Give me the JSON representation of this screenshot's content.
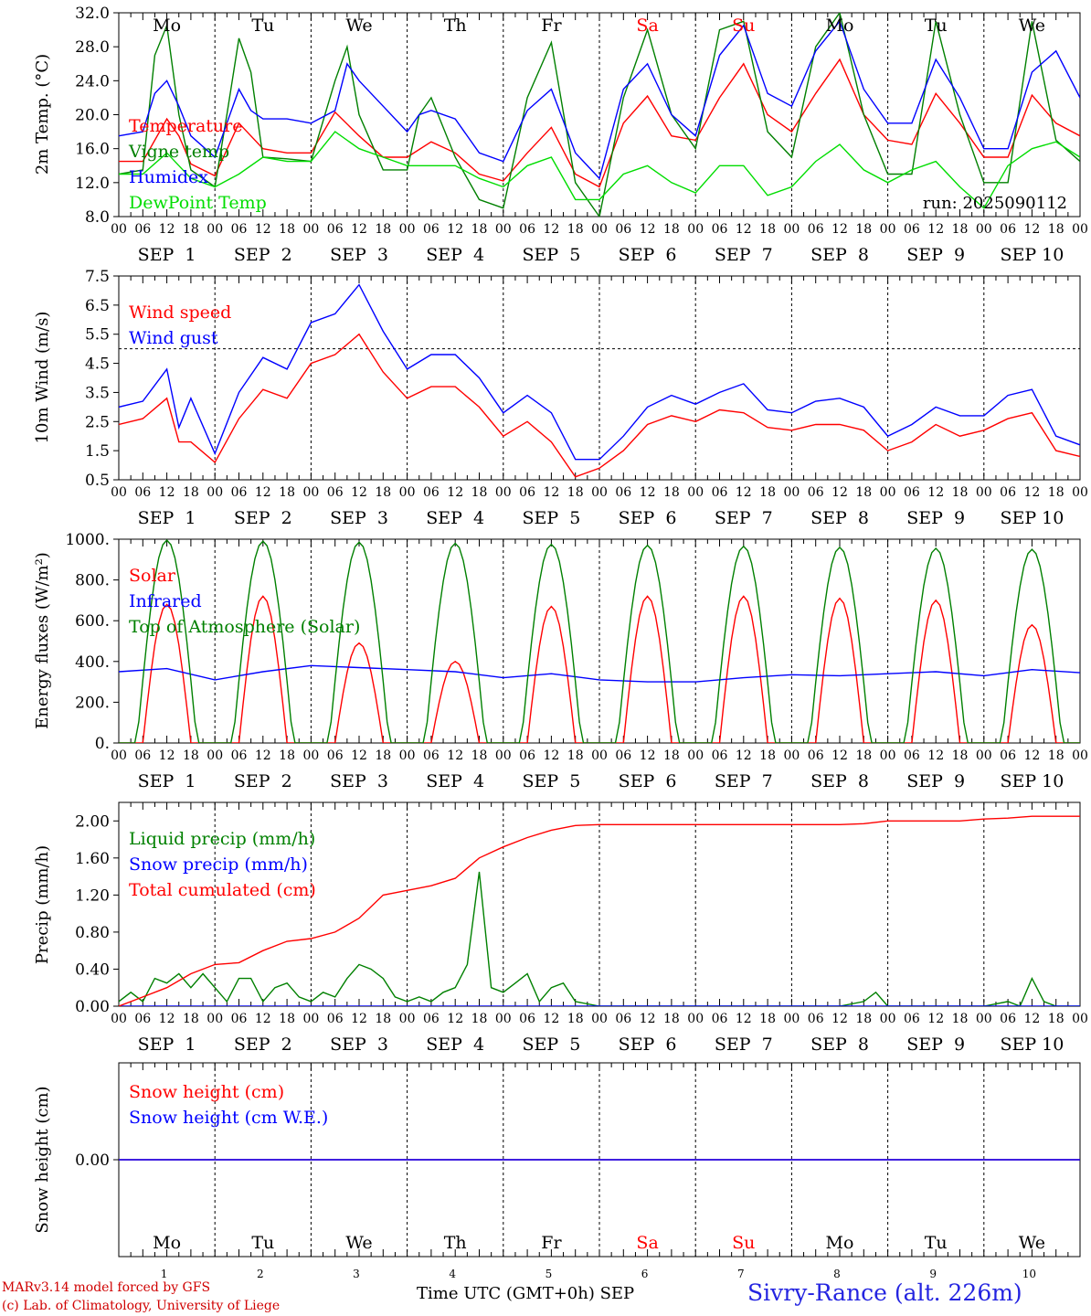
{
  "run_label": "run: 2025090112",
  "days": [
    "Mo",
    "Tu",
    "We",
    "Th",
    "Fr",
    "Sa",
    "Su",
    "Mo",
    "Tu",
    "We"
  ],
  "weekend_flags": [
    false,
    false,
    false,
    false,
    false,
    true,
    true,
    false,
    false,
    false
  ],
  "date_labels": [
    "SEP  1",
    "SEP  2",
    "SEP  3",
    "SEP  4",
    "SEP  5",
    "SEP  6",
    "SEP  7",
    "SEP  8",
    "SEP  9",
    "SEP 10"
  ],
  "day_numbers": [
    "1",
    "2",
    "3",
    "4",
    "5",
    "6",
    "7",
    "8",
    "9",
    "10"
  ],
  "hour_ticks": [
    "00",
    "06",
    "12",
    "18"
  ],
  "footer": {
    "model": "MARv3.14 model forced by GFS",
    "lab": "(c) Lab. of Climatology, University of Liege",
    "xaxis": "Time UTC (GMT+0h) SEP",
    "site": "Sivry-Rance (alt. 226m)"
  },
  "colors": {
    "red": "#ff0000",
    "green": "#008000",
    "blue": "#0000ff",
    "lightgreen": "#00dd00",
    "grid": "#000000"
  },
  "chart_data": [
    {
      "type": "line",
      "ylabel": "2m Temp. (°C)",
      "ylim": [
        8,
        32
      ],
      "yticks": [
        "8.0",
        "12.0",
        "16.0",
        "20.0",
        "24.0",
        "28.0",
        "32.0"
      ],
      "x_unit": "hours since SEP 1 00 UTC",
      "series": [
        {
          "name": "Temperature",
          "color": "#ff0000",
          "x": [
            0,
            6,
            12,
            15,
            18,
            24,
            30,
            36,
            42,
            48,
            54,
            60,
            66,
            72,
            78,
            84,
            90,
            96,
            102,
            108,
            114,
            120,
            126,
            132,
            138,
            144,
            150,
            156,
            162,
            168,
            174,
            180,
            186,
            192,
            198,
            204,
            210,
            216,
            222,
            228,
            234,
            240
          ],
          "y": [
            14.5,
            14.5,
            19.5,
            17.5,
            14.2,
            12.8,
            19.0,
            16.0,
            15.5,
            15.5,
            20.3,
            17.5,
            15.0,
            15.0,
            16.8,
            15.5,
            13.0,
            12.2,
            15.5,
            18.5,
            13.0,
            11.5,
            19.0,
            22.2,
            17.5,
            17.0,
            22.0,
            26.0,
            20.0,
            18.0,
            22.5,
            26.5,
            20.0,
            17.0,
            16.5,
            22.5,
            19.0,
            15.0,
            15.0,
            22.3,
            19.0,
            17.5
          ]
        },
        {
          "name": "Vigne temp",
          "color": "#008000",
          "x": [
            0,
            6,
            9,
            12,
            15,
            18,
            24,
            27,
            30,
            33,
            36,
            42,
            48,
            54,
            57,
            60,
            66,
            72,
            75,
            78,
            84,
            90,
            96,
            102,
            108,
            114,
            120,
            126,
            132,
            138,
            144,
            150,
            156,
            162,
            168,
            174,
            180,
            186,
            192,
            198,
            204,
            210,
            216,
            222,
            228,
            234,
            240
          ],
          "y": [
            13.0,
            13.5,
            27.0,
            30.5,
            20.0,
            13.5,
            11.5,
            20.0,
            29.0,
            25.0,
            15.0,
            14.8,
            14.5,
            24.0,
            28.0,
            20.0,
            13.5,
            13.5,
            20.0,
            22.0,
            15.0,
            10.0,
            9.0,
            22.0,
            28.5,
            12.0,
            8.0,
            22.0,
            30.0,
            20.0,
            16.0,
            30.0,
            31.0,
            18.0,
            15.0,
            28.0,
            32.0,
            20.0,
            13.0,
            13.0,
            31.0,
            20.0,
            12.0,
            12.0,
            31.0,
            17.0,
            14.5
          ]
        },
        {
          "name": "Humidex",
          "color": "#0000ff",
          "x": [
            0,
            6,
            9,
            12,
            15,
            18,
            24,
            27,
            30,
            33,
            36,
            42,
            48,
            54,
            57,
            60,
            66,
            72,
            75,
            78,
            84,
            90,
            96,
            102,
            108,
            114,
            120,
            126,
            132,
            138,
            144,
            150,
            156,
            162,
            168,
            174,
            180,
            186,
            192,
            198,
            204,
            210,
            216,
            222,
            228,
            234,
            240
          ],
          "y": [
            17.5,
            18.0,
            22.5,
            24.0,
            21.0,
            17.5,
            15.0,
            19.0,
            23.0,
            20.5,
            19.5,
            19.5,
            19.0,
            20.5,
            26.0,
            24.0,
            21.0,
            18.0,
            20.0,
            20.5,
            19.5,
            15.5,
            14.5,
            20.5,
            23.0,
            15.5,
            12.5,
            23.0,
            26.0,
            20.0,
            17.5,
            27.0,
            30.5,
            22.5,
            21.0,
            27.5,
            31.0,
            23.0,
            19.0,
            19.0,
            26.5,
            22.0,
            16.0,
            16.0,
            25.0,
            27.5,
            22.0
          ]
        },
        {
          "name": "DewPoint Temp",
          "color": "#00dd00",
          "x": [
            0,
            6,
            12,
            18,
            24,
            30,
            36,
            42,
            48,
            54,
            60,
            66,
            72,
            78,
            84,
            90,
            96,
            102,
            108,
            114,
            120,
            126,
            132,
            138,
            144,
            150,
            156,
            162,
            168,
            174,
            180,
            186,
            192,
            198,
            204,
            210,
            216,
            222,
            228,
            234,
            240
          ],
          "y": [
            13.0,
            13.0,
            15.5,
            12.5,
            11.5,
            13.0,
            15.0,
            14.5,
            14.5,
            18.0,
            16.0,
            15.0,
            14.0,
            14.0,
            14.0,
            12.5,
            11.5,
            14.0,
            15.0,
            10.0,
            10.0,
            13.0,
            14.0,
            12.0,
            10.8,
            14.0,
            14.0,
            10.5,
            11.5,
            14.5,
            16.5,
            13.5,
            12.0,
            13.5,
            14.5,
            11.5,
            9.0,
            14.0,
            16.0,
            16.8,
            15.0
          ]
        }
      ]
    },
    {
      "type": "line",
      "ylabel": "10m Wind (m/s)",
      "ylim": [
        0.5,
        7.5
      ],
      "yticks": [
        "0.5",
        "1.5",
        "2.5",
        "3.5",
        "4.5",
        "5.5",
        "6.5",
        "7.5"
      ],
      "x_unit": "hours since SEP 1 00 UTC",
      "reference_line": 5.0,
      "series": [
        {
          "name": "Wind speed",
          "color": "#ff0000",
          "x": [
            0,
            6,
            12,
            15,
            18,
            24,
            30,
            36,
            42,
            48,
            54,
            60,
            66,
            72,
            78,
            84,
            90,
            96,
            102,
            108,
            114,
            120,
            126,
            132,
            138,
            144,
            150,
            156,
            162,
            168,
            174,
            180,
            186,
            192,
            198,
            204,
            210,
            216,
            222,
            228,
            234,
            240
          ],
          "y": [
            2.4,
            2.6,
            3.3,
            1.8,
            1.8,
            1.1,
            2.6,
            3.6,
            3.3,
            4.5,
            4.8,
            5.5,
            4.2,
            3.3,
            3.7,
            3.7,
            3.0,
            2.0,
            2.5,
            1.8,
            0.6,
            0.9,
            1.5,
            2.4,
            2.7,
            2.5,
            2.9,
            2.8,
            2.3,
            2.2,
            2.4,
            2.4,
            2.2,
            1.5,
            1.8,
            2.4,
            2.0,
            2.2,
            2.6,
            2.8,
            1.5,
            1.3
          ]
        },
        {
          "name": "Wind gust",
          "color": "#0000ff",
          "x": [
            0,
            6,
            12,
            15,
            18,
            24,
            30,
            36,
            42,
            48,
            54,
            60,
            66,
            72,
            78,
            84,
            90,
            96,
            102,
            108,
            114,
            120,
            126,
            132,
            138,
            144,
            150,
            156,
            162,
            168,
            174,
            180,
            186,
            192,
            198,
            204,
            210,
            216,
            222,
            228,
            234,
            240
          ],
          "y": [
            3.0,
            3.2,
            4.3,
            2.3,
            3.3,
            1.4,
            3.5,
            4.7,
            4.3,
            5.9,
            6.2,
            7.2,
            5.6,
            4.3,
            4.8,
            4.8,
            4.0,
            2.8,
            3.4,
            2.8,
            1.2,
            1.2,
            2.0,
            3.0,
            3.4,
            3.1,
            3.5,
            3.8,
            2.9,
            2.8,
            3.2,
            3.3,
            3.0,
            2.0,
            2.4,
            3.0,
            2.7,
            2.7,
            3.4,
            3.6,
            2.0,
            1.7
          ]
        }
      ]
    },
    {
      "type": "line",
      "ylabel": "Energy fluxes (W/m²)",
      "ylim": [
        0,
        1000
      ],
      "yticks": [
        "0.",
        "200.",
        "400.",
        "600.",
        "800.",
        "1000."
      ],
      "x_unit": "hours since SEP 1 00 UTC",
      "series": [
        {
          "name": "Solar",
          "color": "#ff0000",
          "peak_hour": 12,
          "daily_peaks": [
            680,
            720,
            490,
            400,
            670,
            720,
            720,
            710,
            700,
            580
          ]
        },
        {
          "name": "Infrared",
          "color": "#0000ff",
          "x": [
            0,
            12,
            24,
            36,
            48,
            60,
            72,
            84,
            96,
            108,
            120,
            132,
            144,
            156,
            168,
            180,
            192,
            204,
            216,
            228,
            240
          ],
          "y": [
            350,
            365,
            310,
            350,
            380,
            370,
            360,
            350,
            320,
            340,
            310,
            300,
            300,
            320,
            335,
            330,
            340,
            350,
            330,
            360,
            345
          ]
        },
        {
          "name": "Top of Atmosphere (Solar)",
          "color": "#008000",
          "peak_hour": 12,
          "day_start_hour": 4.5,
          "day_end_hour": 19.5,
          "daily_peaks": [
            995,
            990,
            985,
            980,
            975,
            970,
            965,
            960,
            955,
            950
          ]
        }
      ]
    },
    {
      "type": "line",
      "ylabel": "Precip (mm/h)",
      "ylim": [
        0,
        2.2
      ],
      "yticks": [
        "0.00",
        "0.40",
        "0.80",
        "1.20",
        "1.60",
        "2.00"
      ],
      "x_unit": "hours since SEP 1 00 UTC",
      "series": [
        {
          "name": "Liquid precip (mm/h)",
          "color": "#008000",
          "x": [
            0,
            3,
            6,
            9,
            12,
            15,
            18,
            21,
            24,
            27,
            30,
            33,
            36,
            39,
            42,
            45,
            48,
            51,
            54,
            57,
            60,
            63,
            66,
            69,
            72,
            75,
            78,
            81,
            84,
            87,
            90,
            93,
            96,
            99,
            102,
            105,
            108,
            111,
            114,
            120,
            132,
            144,
            156,
            168,
            180,
            186,
            189,
            192,
            198,
            204,
            210,
            216,
            222,
            225,
            228,
            231,
            234,
            240
          ],
          "y": [
            0.05,
            0.15,
            0.05,
            0.3,
            0.25,
            0.35,
            0.2,
            0.35,
            0.2,
            0.05,
            0.3,
            0.3,
            0.05,
            0.2,
            0.25,
            0.1,
            0.05,
            0.15,
            0.1,
            0.3,
            0.45,
            0.4,
            0.3,
            0.1,
            0.05,
            0.1,
            0.05,
            0.15,
            0.2,
            0.45,
            1.45,
            0.2,
            0.15,
            0.25,
            0.35,
            0.05,
            0.2,
            0.25,
            0.05,
            0,
            0,
            0,
            0,
            0,
            0,
            0.05,
            0.15,
            0,
            0,
            0,
            0,
            0,
            0.05,
            0,
            0.3,
            0.05,
            0,
            0
          ]
        },
        {
          "name": "Snow precip (mm/h)",
          "color": "#0000ff",
          "x": [
            0,
            240
          ],
          "y": [
            0,
            0
          ]
        },
        {
          "name": "Total cumulated (cm)",
          "color": "#ff0000",
          "x": [
            0,
            6,
            12,
            18,
            24,
            30,
            36,
            42,
            48,
            54,
            60,
            66,
            72,
            78,
            84,
            90,
            96,
            102,
            108,
            114,
            120,
            132,
            144,
            156,
            168,
            180,
            186,
            192,
            198,
            204,
            210,
            216,
            222,
            228,
            234,
            240
          ],
          "y": [
            0.0,
            0.1,
            0.2,
            0.35,
            0.45,
            0.47,
            0.6,
            0.7,
            0.73,
            0.8,
            0.95,
            1.2,
            1.25,
            1.3,
            1.38,
            1.6,
            1.72,
            1.82,
            1.9,
            1.95,
            1.96,
            1.96,
            1.96,
            1.96,
            1.96,
            1.96,
            1.97,
            2.0,
            2.0,
            2.0,
            2.0,
            2.02,
            2.03,
            2.05,
            2.05,
            2.05
          ]
        }
      ]
    },
    {
      "type": "line",
      "ylabel": "Snow height (cm)",
      "yticks": [
        "0.00"
      ],
      "x_unit": "hours since SEP 1 00 UTC",
      "series": [
        {
          "name": "Snow height (cm)",
          "color": "#ff0000",
          "x": [
            0,
            240
          ],
          "y": [
            0,
            0
          ]
        },
        {
          "name": "Snow height (cm W.E.)",
          "color": "#0000ff",
          "x": [
            0,
            240
          ],
          "y": [
            0,
            0
          ]
        }
      ]
    }
  ]
}
